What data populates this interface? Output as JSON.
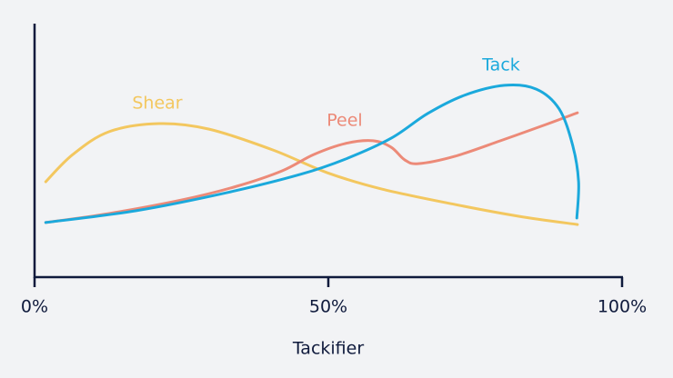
{
  "chart_data": {
    "type": "line",
    "xlabel": "Tackifier",
    "xlim": [
      0,
      100
    ],
    "ylim": [
      0,
      100
    ],
    "xticks": [
      {
        "value": 0,
        "label": "0%"
      },
      {
        "value": 50,
        "label": "50%"
      },
      {
        "value": 100,
        "label": "100%"
      }
    ],
    "series": [
      {
        "name": "Shear",
        "color": "#f3c75f",
        "x": [
          1.9,
          6.5,
          12.7,
          21.2,
          29.7,
          40.6,
          49.8,
          59.1,
          71.5,
          82.4,
          92.4
        ],
        "values": [
          37.9,
          48.7,
          57.8,
          61.0,
          58.8,
          50.5,
          41.5,
          35.0,
          28.9,
          24.2,
          20.9
        ]
      },
      {
        "name": "Peel",
        "color": "#ec8a78",
        "x": [
          1.9,
          12.7,
          25.1,
          34.4,
          42.1,
          47.5,
          52.9,
          57.6,
          60.7,
          63.0,
          65.3,
          71.5,
          79.3,
          87.0,
          92.4
        ],
        "values": [
          21.7,
          25.3,
          30.7,
          36.1,
          42.2,
          48.7,
          53.1,
          54.2,
          51.6,
          46.6,
          45.1,
          48.0,
          54.2,
          60.6,
          65.3
        ]
      },
      {
        "name": "Tack",
        "color": "#1ba9dc",
        "x": [
          1.9,
          17.3,
          32.8,
          45.2,
          52.9,
          60.7,
          66.9,
          73.1,
          80.0,
          85.4,
          89.3,
          91.6,
          92.6,
          92.3
        ],
        "values": [
          21.7,
          26.4,
          33.6,
          40.8,
          46.9,
          55.2,
          65.0,
          72.2,
          76.2,
          74.7,
          66.8,
          52.3,
          37.9,
          23.5
        ]
      }
    ]
  }
}
